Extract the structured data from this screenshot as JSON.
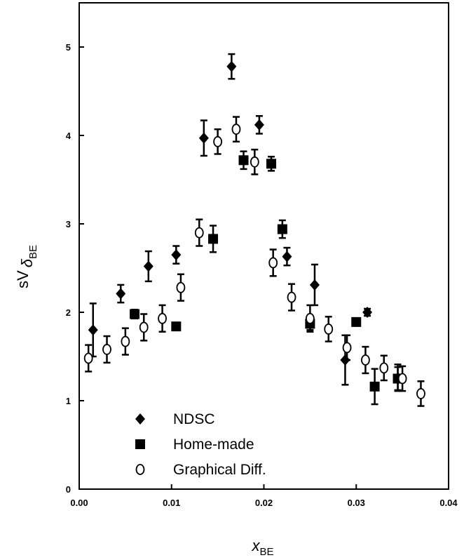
{
  "chart_data": {
    "type": "scatter",
    "title": "",
    "xlabel": "x",
    "xlabel_sub": "BE",
    "ylabel": "sV",
    "ylabel_symbol": "δ",
    "ylabel_sub": "BE",
    "xlim": [
      0,
      0.04
    ],
    "ylim": [
      0,
      5.5
    ],
    "xticks": [
      "0.00",
      "0.01",
      "0.02",
      "0.03",
      "0.04"
    ],
    "xtick_values": [
      0,
      0.01,
      0.02,
      0.03,
      0.04
    ],
    "yticks": [
      "0",
      "1",
      "2",
      "3",
      "4",
      "5"
    ],
    "ytick_values": [
      0,
      1,
      2,
      3,
      4,
      5
    ],
    "grid": false,
    "legend_position": "bottom-left",
    "series": [
      {
        "name": "NDSC",
        "marker": "diamond-filled",
        "x": [
          0.0015,
          0.0045,
          0.0075,
          0.0105,
          0.0135,
          0.0165,
          0.0195,
          0.0225,
          0.0255,
          0.0288,
          0.0312,
          0.0345
        ],
        "y": [
          1.8,
          2.21,
          2.52,
          2.65,
          3.97,
          4.78,
          4.12,
          2.63,
          2.31,
          1.46,
          2.0,
          1.26
        ],
        "err": [
          0.3,
          0.1,
          0.17,
          0.1,
          0.2,
          0.14,
          0.1,
          0.1,
          0.23,
          0.28,
          0.04,
          0.15
        ]
      },
      {
        "name": "Home-made",
        "marker": "square-filled",
        "x": [
          0.006,
          0.0105,
          0.0145,
          0.0178,
          0.0208,
          0.022,
          0.025,
          0.03,
          0.032,
          0.0345
        ],
        "y": [
          1.98,
          1.84,
          2.83,
          3.72,
          3.68,
          2.94,
          1.87,
          1.89,
          1.16,
          1.25
        ],
        "err": [
          0.05,
          0.03,
          0.15,
          0.1,
          0.08,
          0.1,
          0.07,
          0.02,
          0.2,
          0.13
        ]
      },
      {
        "name": "Graphical Diff.",
        "marker": "circle-open",
        "x": [
          0.001,
          0.003,
          0.005,
          0.007,
          0.009,
          0.011,
          0.013,
          0.015,
          0.017,
          0.019,
          0.021,
          0.023,
          0.025,
          0.027,
          0.029,
          0.031,
          0.033,
          0.035,
          0.037
        ],
        "y": [
          1.48,
          1.58,
          1.67,
          1.83,
          1.93,
          2.28,
          2.9,
          3.93,
          4.07,
          3.7,
          2.56,
          2.17,
          1.93,
          1.81,
          1.6,
          1.46,
          1.37,
          1.25,
          1.08
        ],
        "err": [
          0.15,
          0.15,
          0.15,
          0.15,
          0.15,
          0.15,
          0.15,
          0.14,
          0.14,
          0.14,
          0.15,
          0.15,
          0.15,
          0.14,
          0.14,
          0.15,
          0.14,
          0.14,
          0.14
        ]
      }
    ]
  }
}
